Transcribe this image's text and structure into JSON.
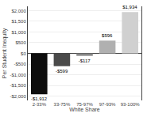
{
  "chart_data": {
    "type": "bar",
    "categories": [
      "2-33%",
      "33-75%",
      "75-97%",
      "97-93%",
      "93-100%"
    ],
    "values": [
      -1912,
      -599,
      -117,
      596,
      1934
    ],
    "value_labels": [
      "-$1,912",
      "-$599",
      "-$117",
      "$596",
      "$1,934"
    ],
    "colors": [
      "#0d0d0d",
      "#4a4a4a",
      "#888888",
      "#b0b0b0",
      "#d0d0d0"
    ],
    "xlabel": "White Share",
    "ylabel": "Per Student Inequity",
    "ylim": [
      -2200,
      2200
    ],
    "yticks": [
      {
        "value": -2000,
        "label": "-$2,000"
      },
      {
        "value": -1500,
        "label": "-$1,500"
      },
      {
        "value": -1000,
        "label": "-$1,000"
      },
      {
        "value": -500,
        "label": "-$500"
      },
      {
        "value": 0,
        "label": "$0"
      },
      {
        "value": 500,
        "label": "$500"
      },
      {
        "value": 1000,
        "label": "$1,000"
      },
      {
        "value": 1500,
        "label": "$1,500"
      },
      {
        "value": 2000,
        "label": "$2,000"
      }
    ],
    "grid": true,
    "data_labels": true
  }
}
